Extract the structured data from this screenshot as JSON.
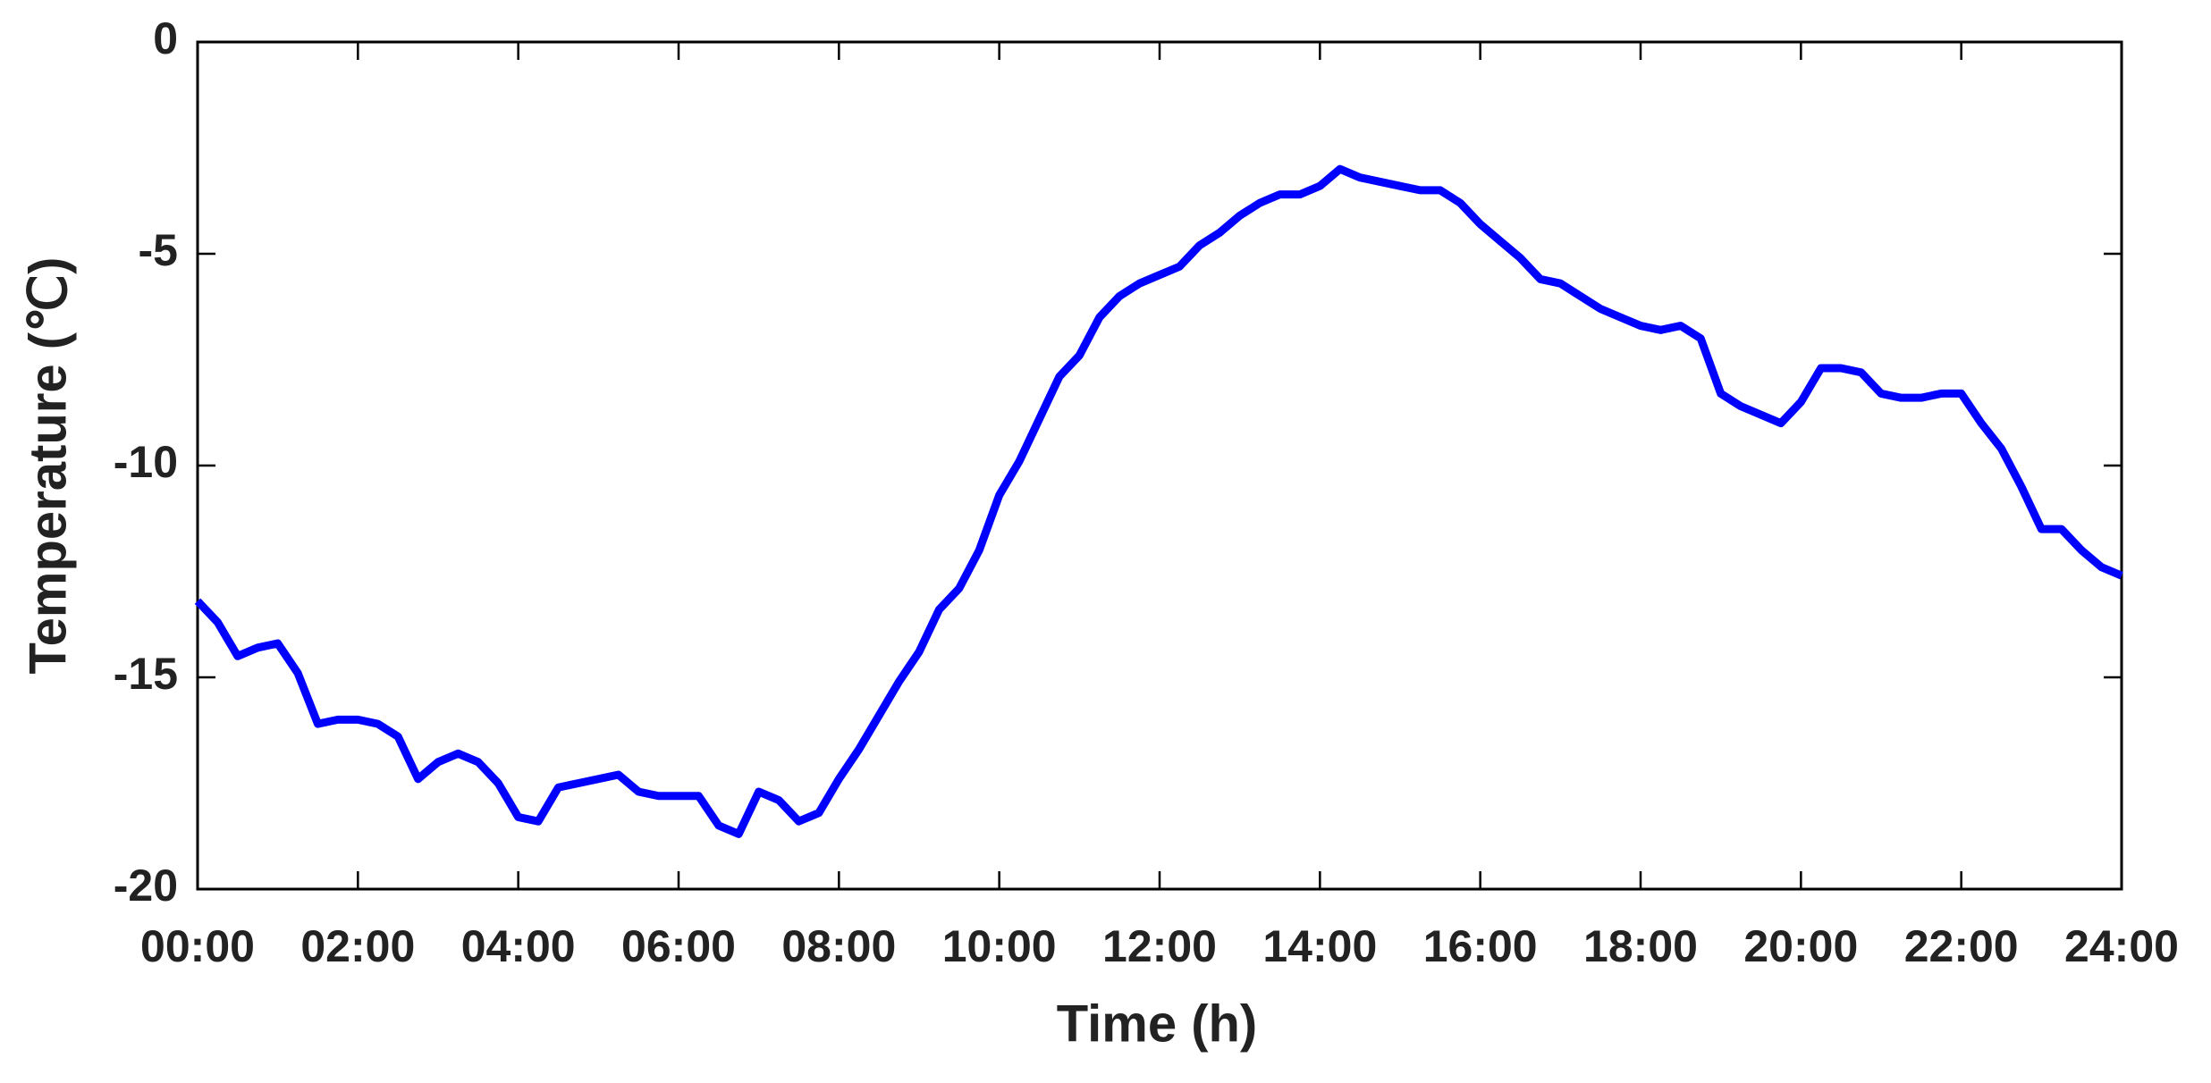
{
  "chart_data": {
    "type": "line",
    "xlabel": "Time (h)",
    "ylabel": "Temperature (℃)",
    "x": [
      0,
      0.25,
      0.5,
      0.75,
      1,
      1.25,
      1.5,
      1.75,
      2,
      2.25,
      2.5,
      2.75,
      3,
      3.25,
      3.5,
      3.75,
      4,
      4.25,
      4.5,
      4.75,
      5,
      5.25,
      5.5,
      5.75,
      6,
      6.25,
      6.5,
      6.75,
      7,
      7.25,
      7.5,
      7.75,
      8,
      8.25,
      8.5,
      8.75,
      9,
      9.25,
      9.5,
      9.75,
      10,
      10.25,
      10.5,
      10.75,
      11,
      11.25,
      11.5,
      11.75,
      12,
      12.25,
      12.5,
      12.75,
      13,
      13.25,
      13.5,
      13.75,
      14,
      14.25,
      14.5,
      14.75,
      15,
      15.25,
      15.5,
      15.75,
      16,
      16.25,
      16.5,
      16.75,
      17,
      17.25,
      17.5,
      17.75,
      18,
      18.25,
      18.5,
      18.75,
      19,
      19.25,
      19.5,
      19.75,
      20,
      20.25,
      20.5,
      20.75,
      21,
      21.25,
      21.5,
      21.75,
      22,
      22.25,
      22.5,
      22.75,
      23,
      23.25,
      23.5,
      23.75,
      24
    ],
    "series": [
      {
        "color": "#0000ff",
        "values": [
          -13.2,
          -13.7,
          -14.5,
          -14.3,
          -14.2,
          -14.9,
          -16.1,
          -16.0,
          -16.0,
          -16.1,
          -16.4,
          -17.4,
          -17.0,
          -16.8,
          -17.0,
          -17.5,
          -18.3,
          -18.4,
          -17.6,
          -17.5,
          -17.4,
          -17.3,
          -17.7,
          -17.8,
          -17.8,
          -17.8,
          -18.5,
          -18.7,
          -17.7,
          -17.9,
          -18.4,
          -18.2,
          -17.4,
          -16.7,
          -15.9,
          -15.1,
          -14.4,
          -13.4,
          -12.9,
          -12.0,
          -10.7,
          -9.9,
          -8.9,
          -7.9,
          -7.4,
          -6.5,
          -6.0,
          -5.7,
          -5.5,
          -5.3,
          -4.8,
          -4.5,
          -4.1,
          -3.8,
          -3.6,
          -3.6,
          -3.4,
          -3.0,
          -3.2,
          -3.3,
          -3.4,
          -3.5,
          -3.5,
          -3.8,
          -4.3,
          -4.7,
          -5.1,
          -5.6,
          -5.7,
          -6.0,
          -6.3,
          -6.5,
          -6.7,
          -6.8,
          -6.7,
          -7.0,
          -8.3,
          -8.6,
          -8.8,
          -9.0,
          -8.5,
          -7.7,
          -7.7,
          -7.8,
          -8.3,
          -8.4,
          -8.4,
          -8.3,
          -8.3,
          -9.0,
          -9.6,
          -10.5,
          -11.5,
          -11.5,
          -12.0,
          -12.4,
          -12.6
        ]
      }
    ],
    "xlim": [
      0,
      24
    ],
    "xticks": [
      {
        "value": 0,
        "label": "00:00"
      },
      {
        "value": 2,
        "label": "02:00"
      },
      {
        "value": 4,
        "label": "04:00"
      },
      {
        "value": 6,
        "label": "06:00"
      },
      {
        "value": 8,
        "label": "08:00"
      },
      {
        "value": 10,
        "label": "10:00"
      },
      {
        "value": 12,
        "label": "12:00"
      },
      {
        "value": 14,
        "label": "14:00"
      },
      {
        "value": 16,
        "label": "16:00"
      },
      {
        "value": 18,
        "label": "18:00"
      },
      {
        "value": 20,
        "label": "20:00"
      },
      {
        "value": 22,
        "label": "22:00"
      },
      {
        "value": 24,
        "label": "24:00"
      }
    ],
    "ylim": [
      -20,
      0
    ],
    "yticks": [
      -20,
      -15,
      -10,
      -5,
      0
    ],
    "grid": false
  }
}
